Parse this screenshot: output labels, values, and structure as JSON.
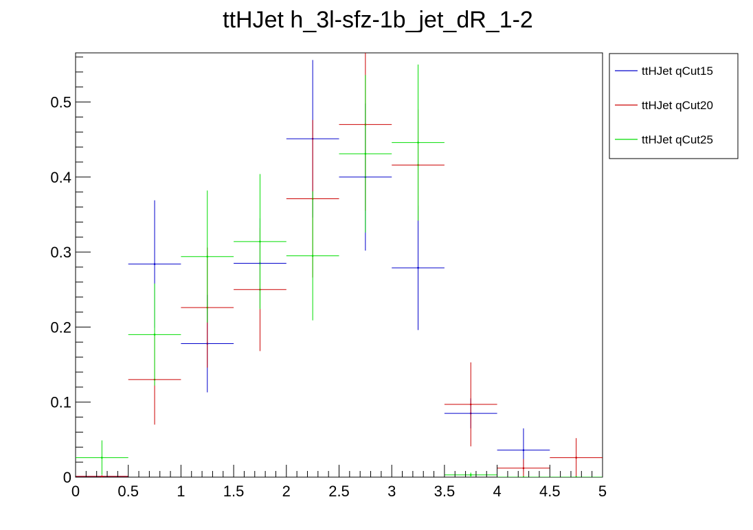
{
  "chart_data": {
    "type": "scatter",
    "title": "ttHJet h_3l-sfz-1b_jet_dR_1-2",
    "xlabel": "",
    "ylabel": "",
    "xlim": [
      0,
      5
    ],
    "ylim": [
      0,
      0.5655
    ],
    "bin_width": 0.5,
    "x": [
      0.25,
      0.75,
      1.25,
      1.75,
      2.25,
      2.75,
      3.25,
      3.75,
      4.25,
      4.75
    ],
    "x_ticks": [
      0,
      0.5,
      1,
      1.5,
      2,
      2.5,
      3,
      3.5,
      4,
      4.5,
      5
    ],
    "x_tick_labels": [
      "0",
      "0.5",
      "1",
      "1.5",
      "2",
      "2.5",
      "3",
      "3.5",
      "4",
      "4.5",
      "5"
    ],
    "y_ticks": [
      0,
      0.1,
      0.2,
      0.3,
      0.4,
      0.5
    ],
    "y_tick_labels": [
      "0",
      "0.1",
      "0.2",
      "0.3",
      "0.4",
      "0.5"
    ],
    "grid": false,
    "legend_position": "outside-top-right",
    "series": [
      {
        "name": "ttHJet qCut15",
        "color": "#0000cc",
        "values": [
          0.001,
          0.284,
          0.178,
          0.285,
          0.451,
          0.4,
          0.279,
          0.085,
          0.036,
          0
        ],
        "errors": [
          0.001,
          0.085,
          0.065,
          0.06,
          0.105,
          0.098,
          0.083,
          0.02,
          0.029,
          0
        ]
      },
      {
        "name": "ttHJet qCut20",
        "color": "#cc0000",
        "values": [
          0.001,
          0.13,
          0.226,
          0.25,
          0.371,
          0.47,
          0.416,
          0.097,
          0.012,
          0.026
        ],
        "errors": [
          0.001,
          0.06,
          0.08,
          0.082,
          0.105,
          0.115,
          0.074,
          0.056,
          0.012,
          0.026
        ]
      },
      {
        "name": "ttHJet qCut25",
        "color": "#00dd00",
        "values": [
          0.026,
          0.19,
          0.294,
          0.314,
          0.295,
          0.431,
          0.446,
          0.003,
          0,
          0
        ],
        "errors": [
          0.023,
          0.068,
          0.088,
          0.09,
          0.086,
          0.105,
          0.104,
          0.003,
          0,
          0
        ]
      }
    ]
  }
}
